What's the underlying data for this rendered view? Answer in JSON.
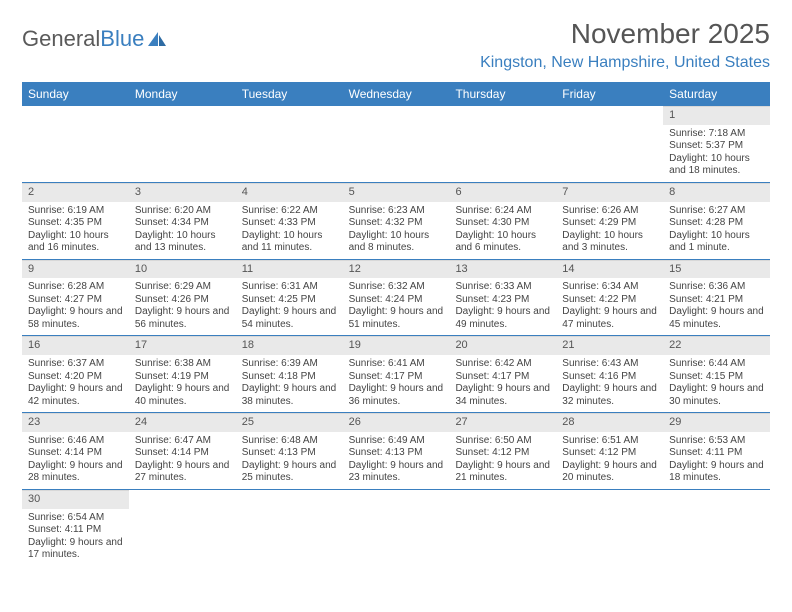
{
  "logo": {
    "text1": "General",
    "text2": "Blue"
  },
  "title": "November 2025",
  "location": "Kingston, New Hampshire, United States",
  "colors": {
    "header_bg": "#3a7fbf",
    "header_fg": "#ffffff",
    "daynum_bg": "#e9e9e9",
    "row_border": "#3a7fbf",
    "title_color": "#555555",
    "location_color": "#3a7fbf",
    "text_color": "#444444"
  },
  "typography": {
    "title_fontsize": 28,
    "location_fontsize": 16,
    "dayheader_fontsize": 12,
    "daynum_fontsize": 11,
    "cell_fontsize": 10
  },
  "calendar": {
    "type": "table",
    "columns": 7,
    "day_headers": [
      "Sunday",
      "Monday",
      "Tuesday",
      "Wednesday",
      "Thursday",
      "Friday",
      "Saturday"
    ],
    "weeks": [
      [
        null,
        null,
        null,
        null,
        null,
        null,
        {
          "n": "1",
          "sunrise": "Sunrise: 7:18 AM",
          "sunset": "Sunset: 5:37 PM",
          "daylight": "Daylight: 10 hours and 18 minutes."
        }
      ],
      [
        {
          "n": "2",
          "sunrise": "Sunrise: 6:19 AM",
          "sunset": "Sunset: 4:35 PM",
          "daylight": "Daylight: 10 hours and 16 minutes."
        },
        {
          "n": "3",
          "sunrise": "Sunrise: 6:20 AM",
          "sunset": "Sunset: 4:34 PM",
          "daylight": "Daylight: 10 hours and 13 minutes."
        },
        {
          "n": "4",
          "sunrise": "Sunrise: 6:22 AM",
          "sunset": "Sunset: 4:33 PM",
          "daylight": "Daylight: 10 hours and 11 minutes."
        },
        {
          "n": "5",
          "sunrise": "Sunrise: 6:23 AM",
          "sunset": "Sunset: 4:32 PM",
          "daylight": "Daylight: 10 hours and 8 minutes."
        },
        {
          "n": "6",
          "sunrise": "Sunrise: 6:24 AM",
          "sunset": "Sunset: 4:30 PM",
          "daylight": "Daylight: 10 hours and 6 minutes."
        },
        {
          "n": "7",
          "sunrise": "Sunrise: 6:26 AM",
          "sunset": "Sunset: 4:29 PM",
          "daylight": "Daylight: 10 hours and 3 minutes."
        },
        {
          "n": "8",
          "sunrise": "Sunrise: 6:27 AM",
          "sunset": "Sunset: 4:28 PM",
          "daylight": "Daylight: 10 hours and 1 minute."
        }
      ],
      [
        {
          "n": "9",
          "sunrise": "Sunrise: 6:28 AM",
          "sunset": "Sunset: 4:27 PM",
          "daylight": "Daylight: 9 hours and 58 minutes."
        },
        {
          "n": "10",
          "sunrise": "Sunrise: 6:29 AM",
          "sunset": "Sunset: 4:26 PM",
          "daylight": "Daylight: 9 hours and 56 minutes."
        },
        {
          "n": "11",
          "sunrise": "Sunrise: 6:31 AM",
          "sunset": "Sunset: 4:25 PM",
          "daylight": "Daylight: 9 hours and 54 minutes."
        },
        {
          "n": "12",
          "sunrise": "Sunrise: 6:32 AM",
          "sunset": "Sunset: 4:24 PM",
          "daylight": "Daylight: 9 hours and 51 minutes."
        },
        {
          "n": "13",
          "sunrise": "Sunrise: 6:33 AM",
          "sunset": "Sunset: 4:23 PM",
          "daylight": "Daylight: 9 hours and 49 minutes."
        },
        {
          "n": "14",
          "sunrise": "Sunrise: 6:34 AM",
          "sunset": "Sunset: 4:22 PM",
          "daylight": "Daylight: 9 hours and 47 minutes."
        },
        {
          "n": "15",
          "sunrise": "Sunrise: 6:36 AM",
          "sunset": "Sunset: 4:21 PM",
          "daylight": "Daylight: 9 hours and 45 minutes."
        }
      ],
      [
        {
          "n": "16",
          "sunrise": "Sunrise: 6:37 AM",
          "sunset": "Sunset: 4:20 PM",
          "daylight": "Daylight: 9 hours and 42 minutes."
        },
        {
          "n": "17",
          "sunrise": "Sunrise: 6:38 AM",
          "sunset": "Sunset: 4:19 PM",
          "daylight": "Daylight: 9 hours and 40 minutes."
        },
        {
          "n": "18",
          "sunrise": "Sunrise: 6:39 AM",
          "sunset": "Sunset: 4:18 PM",
          "daylight": "Daylight: 9 hours and 38 minutes."
        },
        {
          "n": "19",
          "sunrise": "Sunrise: 6:41 AM",
          "sunset": "Sunset: 4:17 PM",
          "daylight": "Daylight: 9 hours and 36 minutes."
        },
        {
          "n": "20",
          "sunrise": "Sunrise: 6:42 AM",
          "sunset": "Sunset: 4:17 PM",
          "daylight": "Daylight: 9 hours and 34 minutes."
        },
        {
          "n": "21",
          "sunrise": "Sunrise: 6:43 AM",
          "sunset": "Sunset: 4:16 PM",
          "daylight": "Daylight: 9 hours and 32 minutes."
        },
        {
          "n": "22",
          "sunrise": "Sunrise: 6:44 AM",
          "sunset": "Sunset: 4:15 PM",
          "daylight": "Daylight: 9 hours and 30 minutes."
        }
      ],
      [
        {
          "n": "23",
          "sunrise": "Sunrise: 6:46 AM",
          "sunset": "Sunset: 4:14 PM",
          "daylight": "Daylight: 9 hours and 28 minutes."
        },
        {
          "n": "24",
          "sunrise": "Sunrise: 6:47 AM",
          "sunset": "Sunset: 4:14 PM",
          "daylight": "Daylight: 9 hours and 27 minutes."
        },
        {
          "n": "25",
          "sunrise": "Sunrise: 6:48 AM",
          "sunset": "Sunset: 4:13 PM",
          "daylight": "Daylight: 9 hours and 25 minutes."
        },
        {
          "n": "26",
          "sunrise": "Sunrise: 6:49 AM",
          "sunset": "Sunset: 4:13 PM",
          "daylight": "Daylight: 9 hours and 23 minutes."
        },
        {
          "n": "27",
          "sunrise": "Sunrise: 6:50 AM",
          "sunset": "Sunset: 4:12 PM",
          "daylight": "Daylight: 9 hours and 21 minutes."
        },
        {
          "n": "28",
          "sunrise": "Sunrise: 6:51 AM",
          "sunset": "Sunset: 4:12 PM",
          "daylight": "Daylight: 9 hours and 20 minutes."
        },
        {
          "n": "29",
          "sunrise": "Sunrise: 6:53 AM",
          "sunset": "Sunset: 4:11 PM",
          "daylight": "Daylight: 9 hours and 18 minutes."
        }
      ],
      [
        {
          "n": "30",
          "sunrise": "Sunrise: 6:54 AM",
          "sunset": "Sunset: 4:11 PM",
          "daylight": "Daylight: 9 hours and 17 minutes."
        },
        null,
        null,
        null,
        null,
        null,
        null
      ]
    ]
  }
}
